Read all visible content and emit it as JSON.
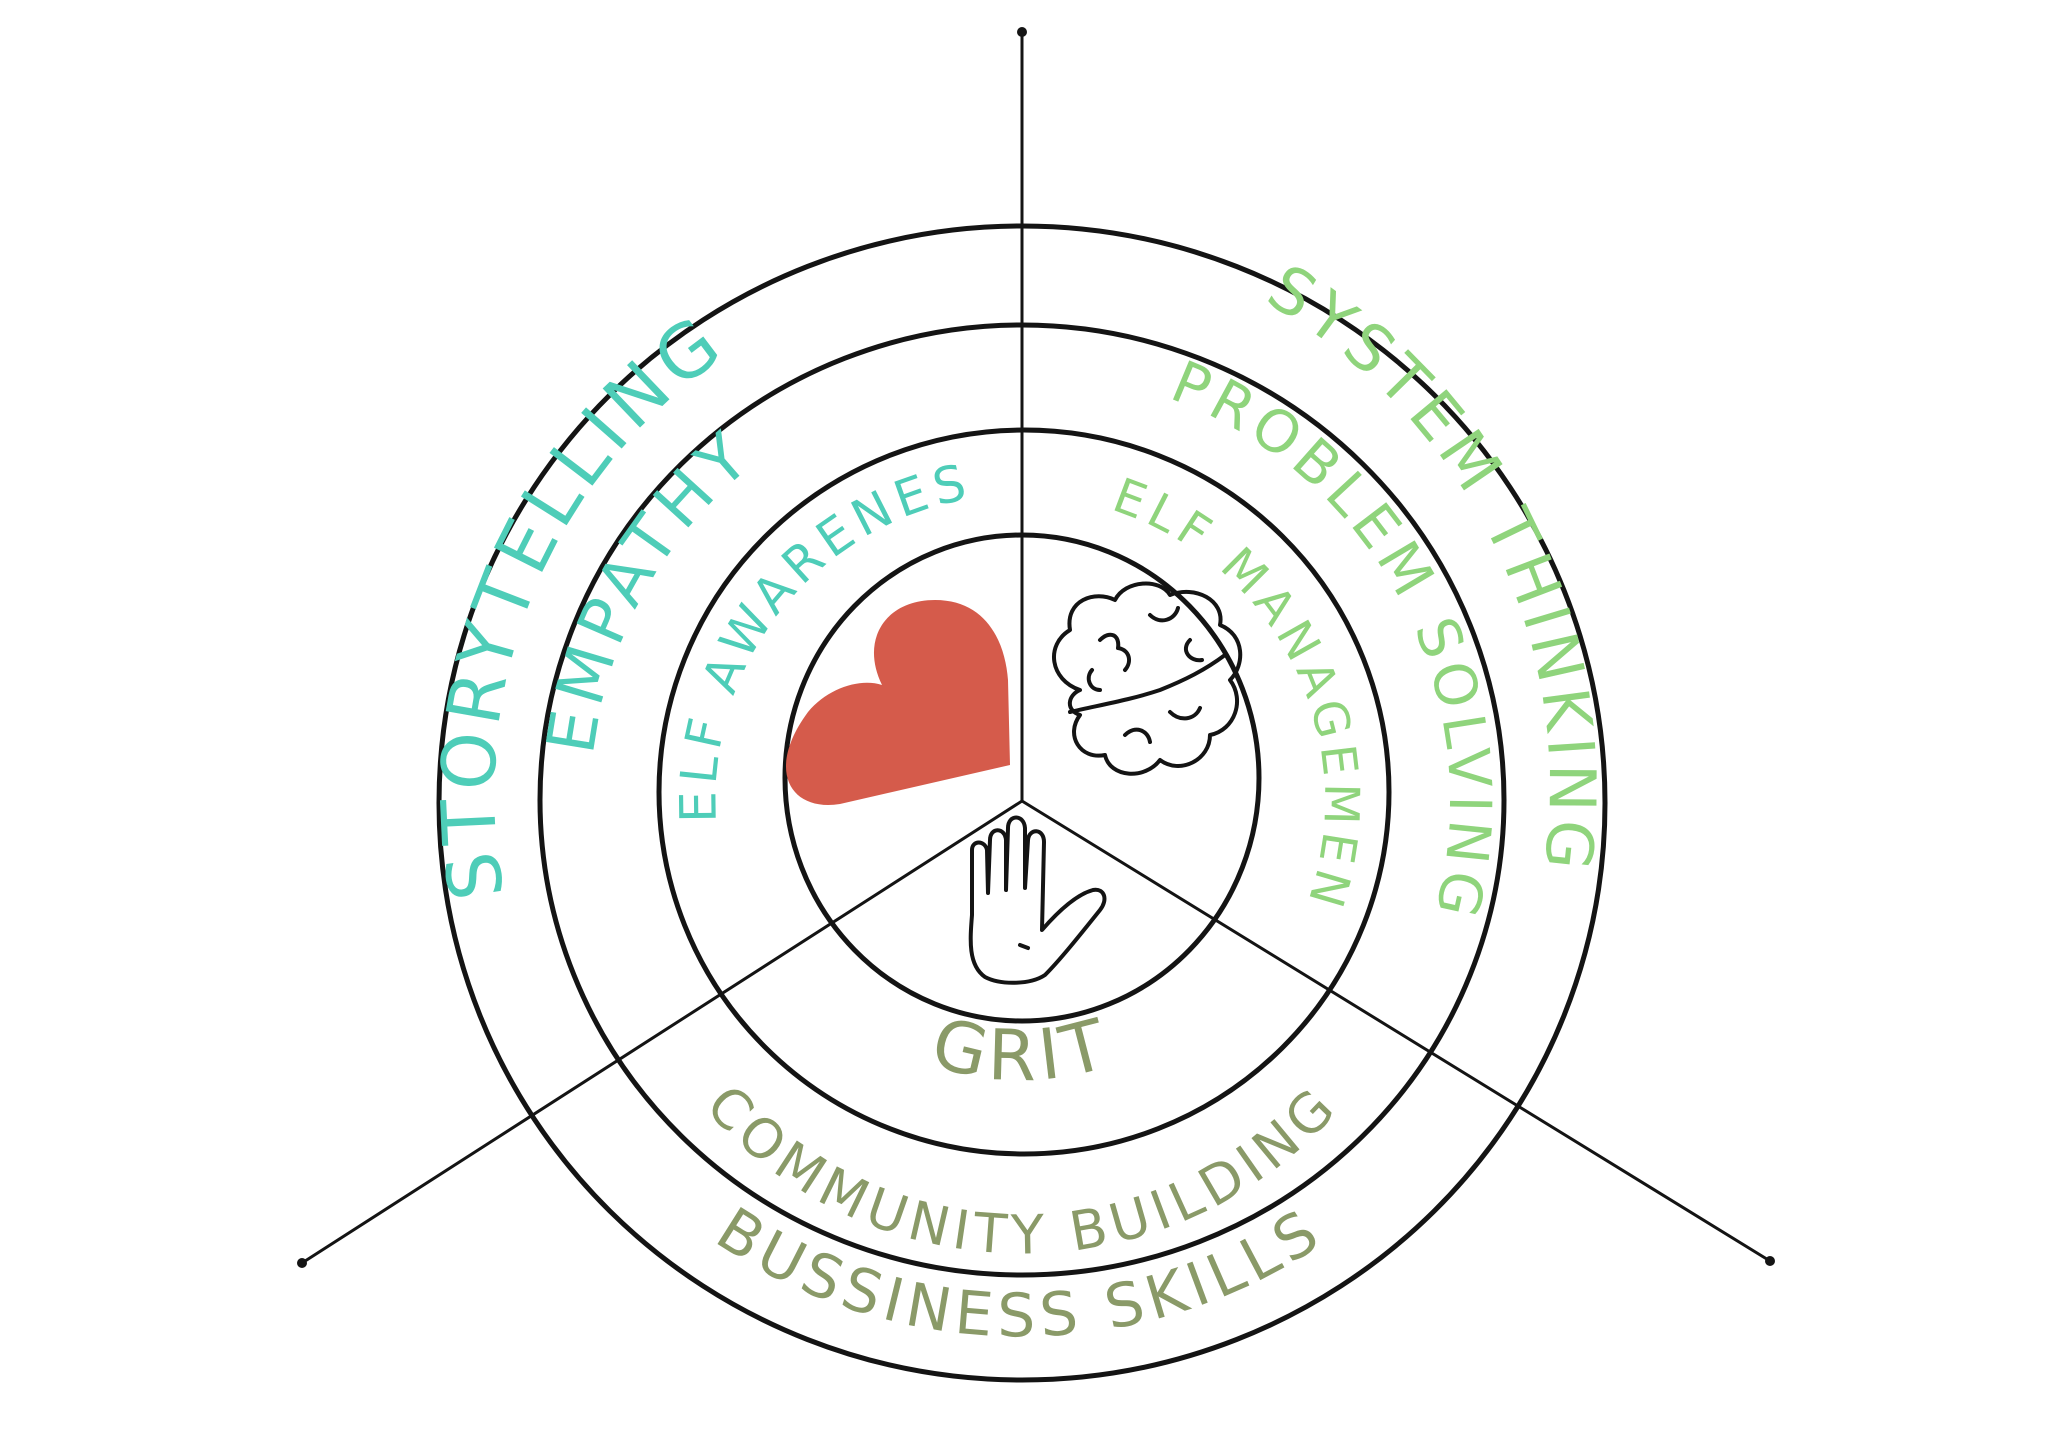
{
  "colors": {
    "ink": "#141414",
    "heart": "#d55b4b",
    "teal": "#4ecdb8",
    "green": "#8fd47c",
    "olive": "#8a9a68"
  },
  "icons": {
    "heart": "heart-icon",
    "brain": "brain-icon",
    "hand": "hand-icon"
  },
  "labels": {
    "storytelling": "STORYTELLING",
    "empathy": "EMPATHY",
    "self_awareness": "SELF AWARENESS",
    "system_thinking": "SYSTEM THINKING",
    "problem_solving": "PROBLEM SOLVING",
    "self_management": "SELF MANAGEMENT",
    "grit": "GRIT",
    "community_building": "COMMUNITY BUILDING",
    "bussiness_skills": "BUSSINESS SKILLS"
  }
}
